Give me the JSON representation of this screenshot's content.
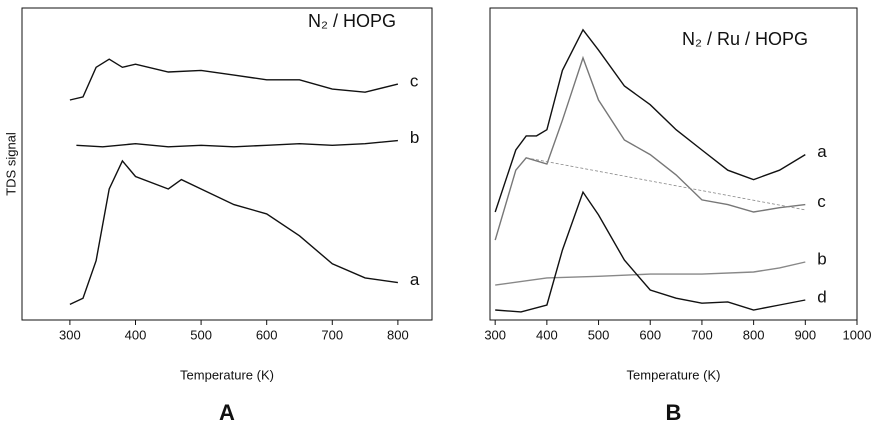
{
  "chart_data": [
    {
      "type": "line",
      "title": "N₂ / HOPG",
      "x_label": "Temperature (K)",
      "y_label": "TDS signal",
      "panel_label": "A",
      "xlim": [
        227,
        852
      ],
      "ylim": [
        0,
        100
      ],
      "xticks": [
        300,
        400,
        500,
        600,
        700,
        800
      ],
      "series": [
        {
          "name": "c",
          "color": "#111111",
          "x": [
            300,
            320,
            340,
            360,
            380,
            400,
            450,
            500,
            550,
            600,
            650,
            700,
            750,
            800
          ],
          "values": [
            70.5,
            71.5,
            81,
            83.6,
            81,
            82,
            79.5,
            80,
            78.5,
            77,
            77,
            74,
            73,
            75.6
          ]
        },
        {
          "name": "b",
          "color": "#111111",
          "x": [
            310,
            350,
            400,
            450,
            500,
            550,
            600,
            650,
            700,
            750,
            800
          ],
          "values": [
            56,
            55.5,
            56.5,
            55.5,
            56,
            55.5,
            56,
            56.5,
            56,
            56.5,
            57.5
          ]
        },
        {
          "name": "a",
          "color": "#111111",
          "x": [
            300,
            320,
            340,
            360,
            380,
            400,
            450,
            470,
            500,
            550,
            600,
            650,
            700,
            750,
            800
          ],
          "values": [
            5,
            7,
            19,
            42,
            51,
            46,
            42,
            45,
            42,
            37,
            34,
            27,
            18,
            13.5,
            12
          ]
        }
      ]
    },
    {
      "type": "line",
      "title": "N₂ / Ru / HOPG",
      "x_label": "Temperature (K)",
      "panel_label": "B",
      "xlim": [
        290,
        1000
      ],
      "ylim": [
        0,
        100
      ],
      "xticks": [
        300,
        400,
        500,
        600,
        700,
        800,
        900,
        1000
      ],
      "series": [
        {
          "name": "a",
          "color": "#111111",
          "x": [
            300,
            340,
            360,
            380,
            400,
            430,
            470,
            500,
            550,
            600,
            650,
            700,
            750,
            800,
            850,
            900
          ],
          "values": [
            34.6,
            54.5,
            59,
            59,
            61,
            80,
            93,
            86.5,
            75,
            69,
            61,
            54.5,
            48,
            45,
            48,
            53
          ]
        },
        {
          "name": "c",
          "color": "#777777",
          "x": [
            300,
            340,
            360,
            400,
            430,
            470,
            500,
            550,
            600,
            650,
            700,
            750,
            800,
            850,
            900
          ],
          "values": [
            25.6,
            48,
            52,
            50,
            64,
            84,
            70.5,
            57.7,
            53,
            46.5,
            38.5,
            37,
            34.6,
            36,
            37
          ]
        },
        {
          "color": "#888888",
          "dashed": true,
          "x": [
            360,
            900
          ],
          "values": [
            52,
            35.3
          ]
        },
        {
          "name": "b",
          "color": "#888888",
          "x": [
            300,
            400,
            500,
            600,
            700,
            800,
            850,
            900
          ],
          "values": [
            11.2,
            13.5,
            14,
            14.7,
            14.7,
            15.4,
            16.7,
            18.6
          ]
        },
        {
          "name": "d",
          "color": "#111111",
          "x": [
            300,
            350,
            400,
            430,
            470,
            500,
            550,
            600,
            650,
            700,
            750,
            800,
            850,
            900
          ],
          "values": [
            3.2,
            2.6,
            4.8,
            22.4,
            41,
            33.7,
            19.2,
            9.6,
            7,
            5.4,
            5.8,
            3.2,
            4.8,
            6.4
          ]
        }
      ]
    }
  ]
}
